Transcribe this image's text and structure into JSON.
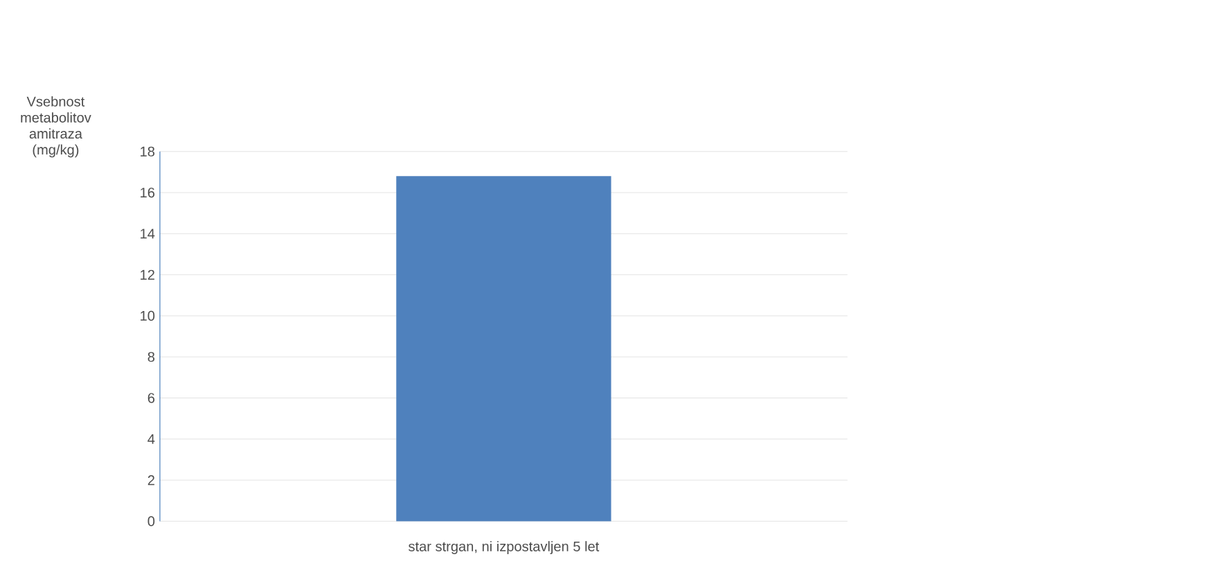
{
  "chart_data": {
    "type": "bar",
    "ylabel": "Vsebnost metabolitov amitraza (mg/kg)",
    "categories": [
      "star strgan, ni izpostavljen 5 let"
    ],
    "values": [
      16.8
    ],
    "color": "#4f81bd",
    "ylim": [
      0,
      18
    ],
    "yticks": [
      0,
      2,
      4,
      6,
      8,
      10,
      12,
      14,
      16,
      18
    ],
    "grid": "y"
  }
}
